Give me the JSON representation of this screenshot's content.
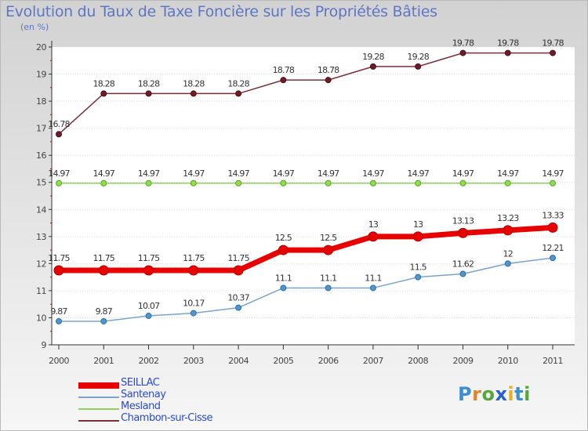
{
  "title": "Evolution du Taux de Taxe Foncière sur les Propriétés Bâties",
  "unit_label": "(en %)",
  "chart_data": {
    "type": "line",
    "title": "Evolution du Taux de Taxe Foncière sur les Propriétés Bâties",
    "ylabel": "(en %)",
    "xlabel": "",
    "ylim": [
      9,
      20
    ],
    "yticks": [
      9,
      10,
      11,
      12,
      13,
      14,
      15,
      16,
      17,
      18,
      19,
      20
    ],
    "x": [
      "2000",
      "2001",
      "2002",
      "2003",
      "2004",
      "2005",
      "2006",
      "2007",
      "2008",
      "2009",
      "2010",
      "2011"
    ],
    "grid": "horizontal",
    "series": [
      {
        "name": "SEILLAC",
        "color": "#e80000",
        "values": [
          11.75,
          11.75,
          11.75,
          11.75,
          11.75,
          12.5,
          12.5,
          13,
          13,
          13.13,
          13.23,
          13.33
        ],
        "labels": [
          "11.75",
          "11.75",
          "11.75",
          "11.75",
          "11.75",
          "12.5",
          "12.5",
          "13",
          "13",
          "13.13",
          "13.23",
          "13.33"
        ]
      },
      {
        "name": "Santenay",
        "color": "#7aa3cc",
        "values": [
          9.87,
          9.87,
          10.07,
          10.17,
          10.37,
          11.1,
          11.1,
          11.1,
          11.5,
          11.62,
          12,
          12.21
        ],
        "labels": [
          "9.87",
          "9.87",
          "10.07",
          "10.17",
          "10.37",
          "11.1",
          "11.1",
          "11.1",
          "11.5",
          "11.62",
          "12",
          "12.21"
        ]
      },
      {
        "name": "Mesland",
        "color": "#90d060",
        "values": [
          14.97,
          14.97,
          14.97,
          14.97,
          14.97,
          14.97,
          14.97,
          14.97,
          14.97,
          14.97,
          14.97,
          14.97
        ],
        "labels": [
          "14.97",
          "14.97",
          "14.97",
          "14.97",
          "14.97",
          "14.97",
          "14.97",
          "14.97",
          "14.97",
          "14.97",
          "14.97",
          "14.97"
        ]
      },
      {
        "name": "Chambon-sur-Cisse",
        "color": "#7a2f38",
        "values": [
          16.78,
          18.28,
          18.28,
          18.28,
          18.28,
          18.78,
          18.78,
          19.28,
          19.28,
          19.78,
          19.78,
          19.78
        ],
        "labels": [
          "16.78",
          "18.28",
          "18.28",
          "18.28",
          "18.28",
          "18.78",
          "18.78",
          "19.28",
          "19.28",
          "19.78",
          "19.78",
          "19.78"
        ]
      }
    ],
    "legend": {
      "position": "bottom-left",
      "entries": [
        "SEILLAC",
        "Santenay",
        "Mesland",
        "Chambon-sur-Cisse"
      ]
    }
  },
  "logo": {
    "text": "Proxiti"
  }
}
